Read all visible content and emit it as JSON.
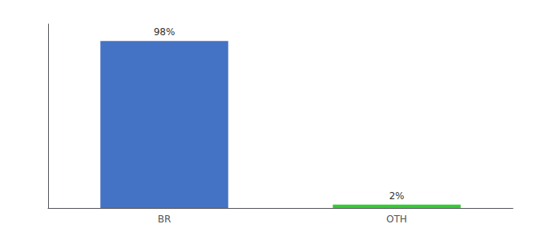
{
  "chart_data": {
    "type": "bar",
    "categories": [
      "BR",
      "OTH"
    ],
    "values": [
      98,
      2
    ],
    "value_labels": [
      "98%",
      "2%"
    ],
    "colors": [
      "#4472C4",
      "#33CC33"
    ],
    "ylim": [
      0,
      108
    ],
    "data_labels": true,
    "tick_labels": "x",
    "grid": false
  }
}
